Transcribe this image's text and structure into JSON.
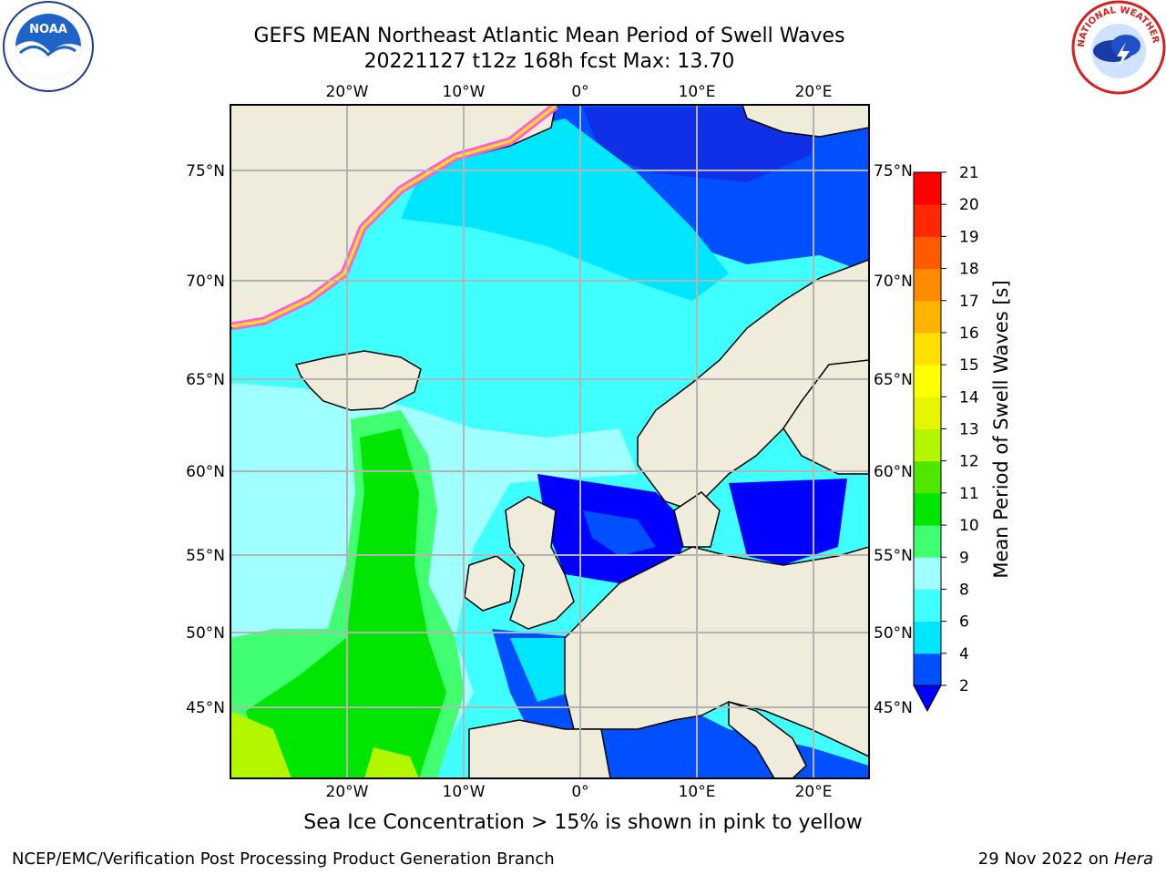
{
  "title": {
    "line1": "GEFS MEAN Northeast Atlantic Mean Period of Swell Waves",
    "line2": "20221127 t12z 168h fcst   Max: 13.70"
  },
  "logos": {
    "left": {
      "icon": "noaa-logo",
      "text": "NOAA"
    },
    "right": {
      "icon": "national-weather-service-logo",
      "text": "NATIONAL WEATHER SERVICE"
    }
  },
  "map": {
    "lon_labels": [
      "20°W",
      "10°W",
      "0°",
      "10°E",
      "20°E"
    ],
    "lat_labels": [
      "75°N",
      "70°N",
      "65°N",
      "60°N",
      "55°N",
      "50°N",
      "45°N"
    ],
    "extent": {
      "lon": [
        -30,
        25
      ],
      "lat": [
        41,
        78
      ]
    },
    "gridline_color": "#b4b4b4",
    "land_color": "#efecdc",
    "sea_ice_colors": [
      "#ff50ff",
      "#ffa040",
      "#ffee40"
    ]
  },
  "colorbar": {
    "label": "Mean Period of Swell Waves [s]",
    "tick_labels": [
      "2",
      "4",
      "6",
      "8",
      "9",
      "10",
      "11",
      "12",
      "13",
      "14",
      "15",
      "16",
      "17",
      "18",
      "19",
      "20",
      "21"
    ],
    "colors": [
      "#0050ff",
      "#00e6ff",
      "#40ffff",
      "#a0ffff",
      "#40ff70",
      "#00e600",
      "#50e600",
      "#b4f500",
      "#e6f500",
      "#ffff00",
      "#ffe000",
      "#ffb400",
      "#ff8c00",
      "#ff5a00",
      "#ff2800",
      "#ff0000"
    ],
    "under_color": "#0000ff"
  },
  "note": "Sea Ice Concentration > 15% is shown in pink to yellow",
  "footer": {
    "left": "NCEP/EMC/Verification Post Processing Product Generation Branch",
    "date": "29 Nov 2022 on",
    "host": "Hera"
  }
}
